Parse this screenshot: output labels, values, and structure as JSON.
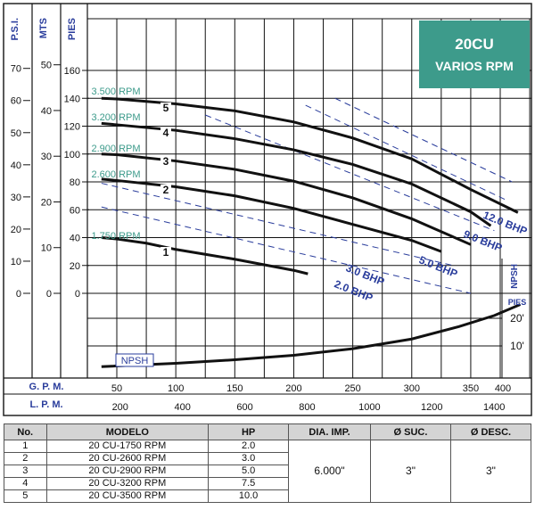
{
  "chart_data": {
    "type": "line",
    "title": "20CU",
    "subtitle": "VARIOS RPM",
    "left_axes": [
      {
        "label": "P.S.I.",
        "ticks": [
          "70",
          "60",
          "50",
          "40",
          "30",
          "20",
          "10",
          "0"
        ]
      },
      {
        "label": "MTS",
        "ticks": [
          "50",
          "40",
          "30",
          "20",
          "10",
          "0"
        ]
      },
      {
        "label": "PIES",
        "ticks": [
          "160",
          "140",
          "120",
          "100",
          "80",
          "60",
          "40",
          "20",
          "0"
        ]
      }
    ],
    "x_axes": [
      {
        "label": "G. P. M.",
        "ticks": [
          "50",
          "100",
          "150",
          "200",
          "250",
          "300",
          "350",
          "400"
        ]
      },
      {
        "label": "L. P. M.",
        "ticks": [
          "200",
          "400",
          "600",
          "800",
          "1000",
          "1200",
          "1400"
        ]
      }
    ],
    "xlim": [
      37,
      400
    ],
    "ylim": [
      0,
      170
    ],
    "series": [
      {
        "name": "1.750 RPM",
        "number": "1",
        "x": [
          37,
          50,
          75,
          100,
          125,
          150,
          175,
          200,
          212
        ],
        "y": [
          40,
          39,
          36,
          31.5,
          28,
          24.5,
          20.5,
          16.5,
          14
        ]
      },
      {
        "name": "2.600 RPM",
        "number": "2",
        "x": [
          37,
          50,
          100,
          150,
          200,
          250,
          300,
          325
        ],
        "y": [
          82,
          81,
          76.5,
          70,
          61,
          49.5,
          38,
          30
        ]
      },
      {
        "name": "2.900 RPM",
        "number": "3",
        "x": [
          37,
          50,
          100,
          150,
          200,
          250,
          300,
          350
        ],
        "y": [
          100,
          99.5,
          95,
          89,
          80.5,
          68.5,
          53.5,
          35
        ]
      },
      {
        "name": "3.200 RPM",
        "number": "4",
        "x": [
          37,
          50,
          100,
          150,
          200,
          250,
          300,
          350,
          367
        ],
        "y": [
          122,
          121,
          117,
          111,
          103,
          92.5,
          78.5,
          58.5,
          48.5
        ]
      },
      {
        "name": "3.500 RPM",
        "number": "5",
        "x": [
          37,
          50,
          100,
          150,
          200,
          250,
          300,
          350,
          390
        ],
        "y": [
          140,
          139.5,
          136,
          131,
          123,
          111.5,
          96.5,
          74.5,
          58
        ]
      }
    ],
    "bhp_lines": [
      {
        "label": "2.0 BHP",
        "x": [
          37,
          350
        ],
        "y": [
          62,
          0
        ]
      },
      {
        "label": "3.0 BHP",
        "x": [
          37,
          335
        ],
        "y": [
          79,
          20
        ]
      },
      {
        "label": "5.0 BHP",
        "x": [
          125,
          370
        ],
        "y": [
          128,
          45
        ]
      },
      {
        "label": "9.0 BHP",
        "x": [
          210,
          380
        ],
        "y": [
          135,
          67
        ]
      },
      {
        "label": "12.0 BHP",
        "x": [
          235,
          385
        ],
        "y": [
          140,
          80
        ]
      }
    ],
    "npsh": {
      "label": "NPSH",
      "axis_label": "NPSH",
      "axis_unit": "PIES",
      "ticks": [
        "20'",
        "10'"
      ],
      "x": [
        37,
        100,
        150,
        200,
        250,
        300,
        340,
        370,
        392
      ],
      "y": [
        2.5,
        3.7,
        5,
        6.6,
        9,
        12.5,
        17,
        21,
        25
      ]
    },
    "grid": true,
    "accent_color": "#3d9b8b",
    "curve_color": "#111111",
    "bhp_color": "#2a3d9c"
  },
  "table": {
    "headers": [
      "No.",
      "MODELO",
      "HP",
      "DIA. IMP.",
      "Ø SUC.",
      "Ø DESC."
    ],
    "rows": [
      {
        "no": "1",
        "model": "20 CU-1750 RPM",
        "hp": "2.0"
      },
      {
        "no": "2",
        "model": "20 CU-2600 RPM",
        "hp": "3.0"
      },
      {
        "no": "3",
        "model": "20 CU-2900 RPM",
        "hp": "5.0"
      },
      {
        "no": "4",
        "model": "20 CU-3200 RPM",
        "hp": "7.5"
      },
      {
        "no": "5",
        "model": "20 CU-3500 RPM",
        "hp": "10.0"
      }
    ],
    "dia_imp": "6.000\"",
    "suction": "3\"",
    "discharge": "3\""
  }
}
